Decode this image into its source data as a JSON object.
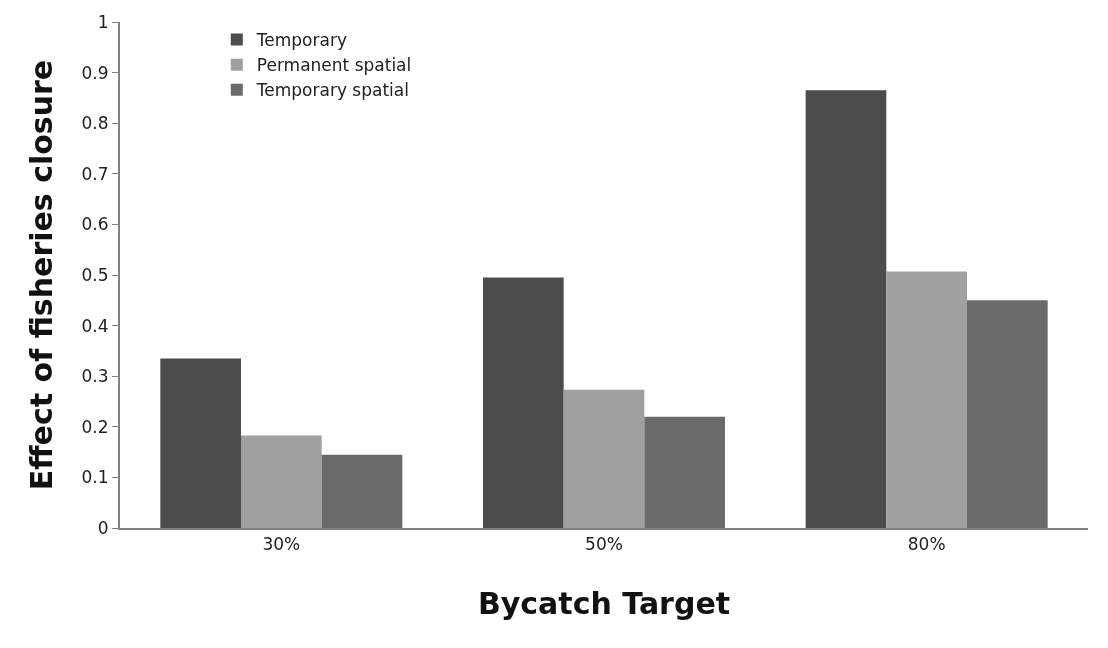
{
  "chart_data": {
    "type": "bar",
    "xlabel": "Bycatch Target",
    "ylabel": "Effect of fisheries closure",
    "categories": [
      "30%",
      "50%",
      "80%"
    ],
    "series": [
      {
        "name": "Temporary",
        "color": "#4c4c4c",
        "values": [
          0.335,
          0.495,
          0.865
        ]
      },
      {
        "name": "Permanent spatial",
        "color": "#a0a0a0",
        "values": [
          0.183,
          0.273,
          0.507
        ]
      },
      {
        "name": "Temporary spatial",
        "color": "#6a6a6a",
        "values": [
          0.145,
          0.22,
          0.45
        ]
      }
    ],
    "ylim": [
      0,
      1
    ],
    "yticks": [
      0,
      0.1,
      0.2,
      0.3,
      0.4,
      0.5,
      0.6,
      0.7,
      0.8,
      0.9,
      1
    ],
    "legend": "top left"
  }
}
